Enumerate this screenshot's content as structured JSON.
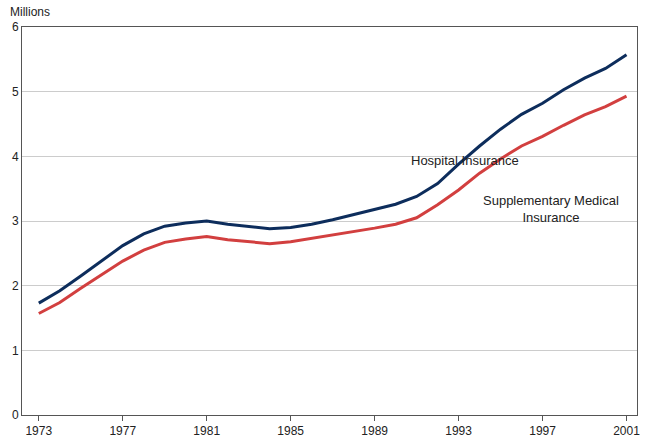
{
  "chart_data": {
    "type": "line",
    "y_label": "Millions",
    "x": [
      1973,
      1974,
      1975,
      1976,
      1977,
      1978,
      1979,
      1980,
      1981,
      1982,
      1983,
      1984,
      1985,
      1986,
      1987,
      1988,
      1989,
      1990,
      1991,
      1992,
      1993,
      1994,
      1995,
      1996,
      1997,
      1998,
      1999,
      2000,
      2001
    ],
    "series": [
      {
        "name": "Hospital Insurance",
        "color": "#0d2d5c",
        "values": [
          1.73,
          1.92,
          2.15,
          2.38,
          2.62,
          2.8,
          2.92,
          2.97,
          3.0,
          2.95,
          2.92,
          2.88,
          2.9,
          2.95,
          3.02,
          3.1,
          3.17,
          3.26,
          3.38,
          3.58,
          3.88,
          4.16,
          4.42,
          4.65,
          4.82,
          5.03,
          5.21,
          5.36,
          5.57
        ]
      },
      {
        "name": "Supplementary Medical Insurance",
        "color": "#d23f3f",
        "values": [
          1.57,
          1.74,
          1.96,
          2.17,
          2.38,
          2.55,
          2.67,
          2.72,
          2.76,
          2.71,
          2.68,
          2.65,
          2.68,
          2.73,
          2.79,
          2.84,
          2.89,
          2.95,
          3.05,
          3.25,
          3.48,
          3.74,
          3.96,
          4.16,
          4.31,
          4.48,
          4.64,
          4.77,
          4.93
        ]
      }
    ],
    "xlim": [
      1972.2,
      2001.5
    ],
    "xticks": [
      1973,
      1977,
      1981,
      1985,
      1989,
      1993,
      1997,
      2001
    ],
    "ylim": [
      0,
      6
    ],
    "yticks": [
      0,
      1,
      2,
      3,
      4,
      5,
      6
    ],
    "grid": true
  }
}
